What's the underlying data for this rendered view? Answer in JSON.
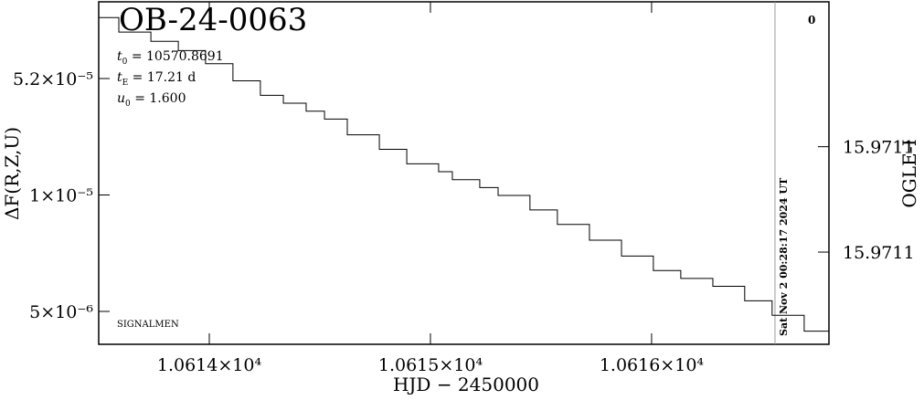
{
  "chart_data": {
    "type": "line",
    "title": "OB-24-0063",
    "params": [
      {
        "symbol": "t",
        "sub": "0",
        "text": " = 10570.8691"
      },
      {
        "symbol": "t",
        "sub": "E",
        "text": " = 17.21 d"
      },
      {
        "symbol": "u",
        "sub": "0",
        "text": " = 1.600"
      }
    ],
    "xlabel": "HJD − 2450000",
    "ylabel": "ΔF(R,Z,U)",
    "y2label": "OGLE-I",
    "credit": "SIGNALMEN",
    "corner_mark": "0",
    "xlim": [
      10613.5,
      10616.802
    ],
    "xticks": [
      {
        "value": 10614,
        "label": "1.0614×10⁴"
      },
      {
        "value": 10615,
        "label": "1.0615×10⁴"
      },
      {
        "value": 10616,
        "label": "1.0616×10⁴"
      }
    ],
    "yticks": [
      {
        "value": 5.2e-05,
        "label": "5.2×10⁻⁵"
      },
      {
        "value": 1e-05,
        "label": "1×10⁻⁵"
      },
      {
        "value": 5e-06,
        "label": "5×10⁻⁶"
      }
    ],
    "y2lim": [
      15.97095,
      15.97121
    ],
    "y2_inverted": true,
    "y2ticks": [
      {
        "value": 15.97106,
        "label": "15.9711"
      },
      {
        "value": 15.97114,
        "label": "15.9711"
      }
    ],
    "step": "post",
    "now_line": {
      "x": 10616.558,
      "label": "Sat Nov  2 00:28:17 2024 UT",
      "color": "#999999"
    },
    "series": [
      {
        "name": "OGLE-I",
        "color": "#000000",
        "axis": "y2",
        "x": [
          10613.5,
          10613.591,
          10613.736,
          10613.86,
          10613.983,
          10614.107,
          10614.231,
          10614.335,
          10614.438,
          10614.521,
          10614.624,
          10614.769,
          10614.893,
          10615.037,
          10615.099,
          10615.223,
          10615.306,
          10615.45,
          10615.574,
          10615.719,
          10615.864,
          10616.008,
          10616.132,
          10616.277,
          10616.421,
          10616.545,
          10616.69,
          10616.802
        ],
        "values": [
          15.970962,
          15.970973,
          15.97098,
          15.970987,
          15.970997,
          15.97101,
          15.971021,
          15.971027,
          15.971033,
          15.971039,
          15.971051,
          15.971062,
          15.971073,
          15.971079,
          15.971085,
          15.971091,
          15.971097,
          15.971108,
          15.971119,
          15.971131,
          15.971143,
          15.971154,
          15.97116,
          15.971166,
          15.971177,
          15.971188,
          15.9712,
          15.9712
        ]
      }
    ]
  }
}
